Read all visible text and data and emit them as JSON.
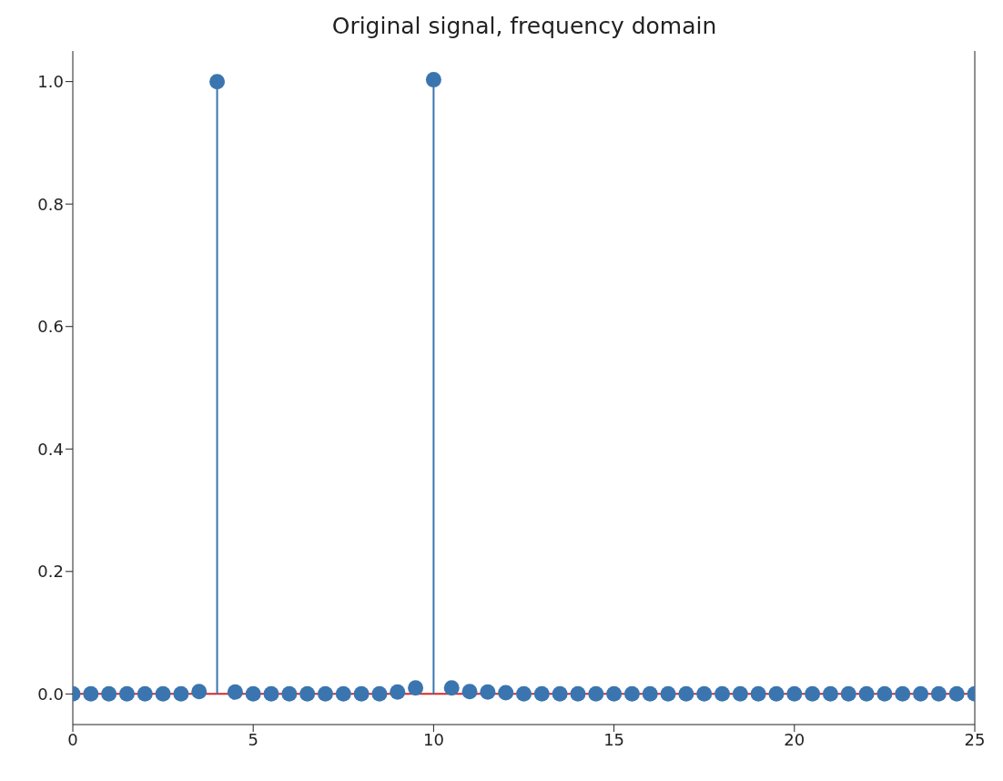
{
  "chart_data": {
    "type": "lollipop",
    "title": "Original signal, frequency domain",
    "x": [
      0,
      0.5,
      1,
      1.5,
      2,
      2.5,
      3,
      3.5,
      4,
      4.5,
      5,
      5.5,
      6,
      6.5,
      7,
      7.5,
      8,
      8.5,
      9,
      9.5,
      10,
      10.5,
      11,
      11.5,
      12,
      12.5,
      13,
      13.5,
      14,
      14.5,
      15,
      15.5,
      16,
      16.5,
      17,
      17.5,
      18,
      18.5,
      19,
      19.5,
      20,
      20.5,
      21,
      21.5,
      22,
      22.5,
      23,
      23.5,
      24,
      24.5,
      25
    ],
    "series": [
      {
        "color": "#3a75b0",
        "values": [
          0,
          0,
          0,
          0,
          0,
          0,
          0,
          0.004,
          1.0,
          0.003,
          0,
          0,
          0,
          0,
          0,
          0,
          0,
          0,
          0.003,
          0.01,
          1.003,
          0.01,
          0.004,
          0.003,
          0.002,
          0,
          0,
          0,
          0,
          0,
          0,
          0,
          0,
          0,
          0,
          0,
          0,
          0,
          0,
          0,
          0,
          0,
          0,
          0,
          0,
          0,
          0,
          0,
          0,
          0,
          0
        ]
      }
    ],
    "xlim": [
      0,
      25
    ],
    "xticks": [
      0,
      5,
      10,
      15,
      20,
      25
    ],
    "ylim": [
      -0.05,
      1.05
    ],
    "yticks": [
      {
        "value": 0,
        "label": "0.0"
      },
      {
        "value": 0.2,
        "label": "0.2"
      },
      {
        "value": 0.4,
        "label": "0.4"
      },
      {
        "value": 0.6,
        "label": "0.6"
      },
      {
        "value": 0.8,
        "label": "0.8"
      },
      {
        "value": 1,
        "label": "1.0"
      }
    ],
    "ref_lines": [
      {
        "axis": "y",
        "value": 0,
        "color": "#d62728"
      }
    ],
    "marker": "circle"
  }
}
